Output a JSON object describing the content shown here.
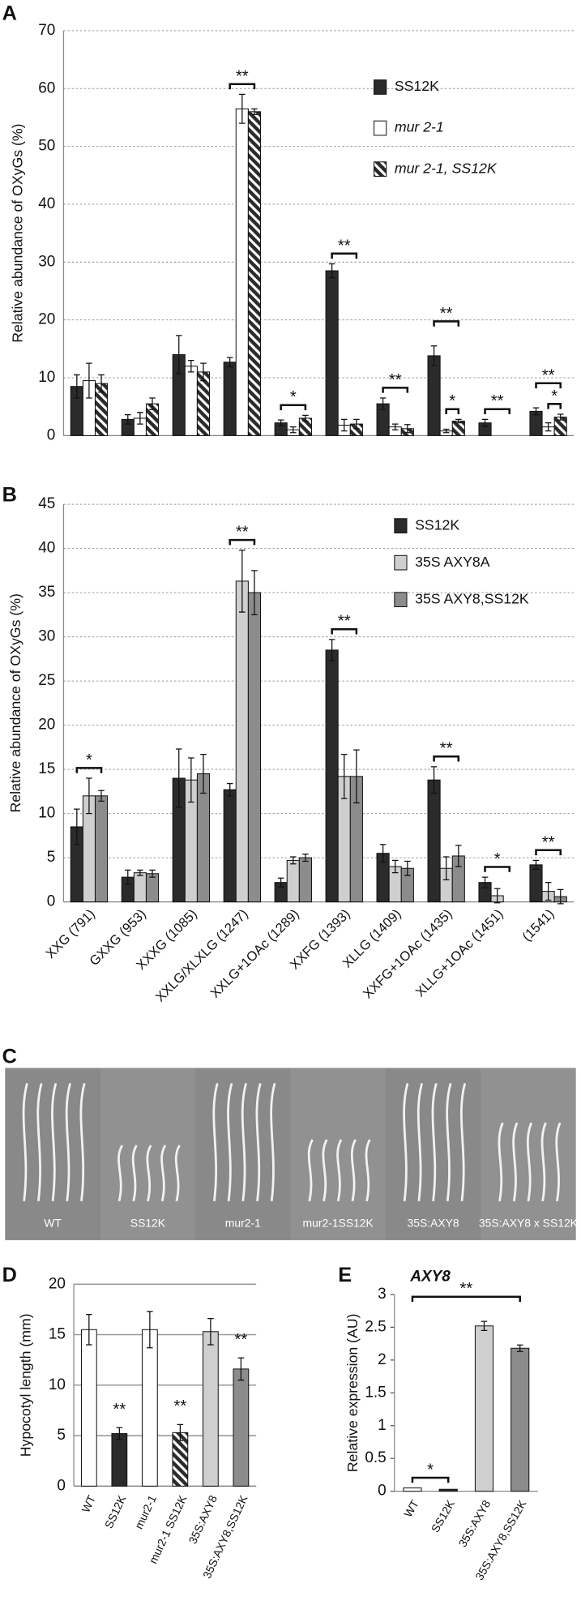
{
  "chart_data": [
    {
      "type": "bar",
      "panel": "A",
      "ylabel": "Relative abundance of OXyGs (%)",
      "categories": [
        null,
        null,
        null,
        null,
        null,
        null,
        null,
        null,
        null,
        null
      ],
      "series": [
        {
          "name": "SS12K",
          "color": "#2b2b2b",
          "values": [
            8.5,
            2.8,
            14,
            12.7,
            2.2,
            28.5,
            5.5,
            13.8,
            2.2,
            4.2
          ],
          "errors": [
            2,
            0.8,
            3.3,
            0.8,
            0.5,
            1.2,
            1,
            1.7,
            0.6,
            0.6
          ]
        },
        {
          "name": "mur 2-1",
          "color": "#ffffff",
          "values": [
            9.5,
            3,
            12,
            56.5,
            1,
            1.8,
            1.5,
            0.8,
            null,
            1.5
          ],
          "errors": [
            3,
            1,
            1,
            2.5,
            0.5,
            1,
            0.5,
            0.3,
            null,
            0.7
          ]
        },
        {
          "name": "mur 2-1, SS12K",
          "color": "#2b2b2b",
          "hatched": true,
          "values": [
            9,
            5.5,
            11,
            56,
            3,
            2,
            1.2,
            2.5,
            null,
            3.2
          ],
          "errors": [
            1.5,
            1,
            1.5,
            0.5,
            0.5,
            0.8,
            0.7,
            0.3,
            null,
            0.5
          ]
        }
      ],
      "annotations": [
        "**",
        "*",
        "**",
        "**",
        "**",
        "*",
        "**",
        "**",
        "*"
      ],
      "ylim": [
        0,
        70
      ],
      "yticks": [
        0,
        10,
        20,
        30,
        40,
        50,
        60,
        70
      ],
      "grid": true,
      "grid_style": "dotted"
    },
    {
      "type": "bar",
      "panel": "B",
      "ylabel": "Relative abundance of OXyGs (%)",
      "categories": [
        "XXG (791)",
        "GXXG (953)",
        "XXXG (1085)",
        "XXLG/XLXLG (1247)",
        "XXLG+1OAc (1289)",
        "XXFG (1393)",
        "XLLG (1409)",
        "XXFG+1OAc (1435)",
        "XLLG+1OAc (1451)",
        "(1541)"
      ],
      "series": [
        {
          "name": "SS12K",
          "color": "#2b2b2b",
          "values": [
            8.5,
            2.8,
            14,
            12.7,
            2.2,
            28.5,
            5.5,
            13.8,
            2.2,
            4.2
          ],
          "errors": [
            2,
            0.8,
            3.3,
            0.7,
            0.5,
            1.2,
            1,
            1.5,
            0.6,
            0.5
          ]
        },
        {
          "name": "35S AXY8A",
          "color": "#cfcfcf",
          "values": [
            12,
            3.3,
            13.8,
            36.3,
            4.7,
            14.2,
            4,
            3.8,
            0.7,
            1.2
          ],
          "errors": [
            2,
            0.3,
            2.5,
            3.5,
            0.4,
            2.5,
            0.7,
            1.3,
            0.8,
            1
          ]
        },
        {
          "name": "35S AXY8,SS12K",
          "color": "#8c8c8c",
          "values": [
            12,
            3.2,
            14.5,
            35,
            5,
            14.2,
            3.8,
            5.2,
            null,
            0.6
          ],
          "errors": [
            0.6,
            0.4,
            2.2,
            2.5,
            0.4,
            3,
            0.8,
            1.2,
            null,
            0.8
          ]
        }
      ],
      "annotations": [
        "*",
        "**",
        "**",
        "**",
        "*",
        "**"
      ],
      "ylim": [
        0,
        45
      ],
      "yticks": [
        0,
        5,
        10,
        15,
        20,
        25,
        30,
        35,
        40,
        45
      ],
      "grid": true,
      "grid_style": "dotted"
    },
    {
      "type": "image",
      "panel": "C",
      "labels": [
        "WT",
        "SS12K",
        "mur2-1",
        "mur2-1SS12K",
        "35S:AXY8",
        "35S:AXY8 x SS12K"
      ]
    },
    {
      "type": "bar",
      "panel": "D",
      "ylabel": "Hypocotyl length (mm)",
      "categories": [
        "WT",
        "SS12K",
        "mur2-1",
        "mur2-1 SS12K",
        "35S:AXY8",
        "35S:AXY8,SS12K"
      ],
      "values": [
        15.5,
        5.2,
        15.5,
        5.3,
        15.3,
        11.6
      ],
      "errors": [
        1.5,
        0.6,
        1.8,
        0.8,
        1.3,
        1.1
      ],
      "colors": [
        "#ffffff",
        "#2b2b2b",
        "#ffffff",
        "#2b2b2b",
        "#cfcfcf",
        "#8c8c8c"
      ],
      "hatched": [
        false,
        false,
        false,
        true,
        false,
        false
      ],
      "annotations": [
        "**",
        "**",
        "**"
      ],
      "ylim": [
        0,
        20
      ],
      "yticks": [
        0,
        5,
        10,
        15,
        20
      ],
      "grid": true,
      "grid_style": "solid"
    },
    {
      "type": "bar",
      "panel": "E",
      "title": "AXY8",
      "ylabel": "Relative expression (AU)",
      "categories": [
        "WT",
        "SS12K",
        "35S:AXY8",
        "35S:AXY8,SS12K"
      ],
      "values": [
        0.05,
        0.03,
        2.52,
        2.18
      ],
      "errors": [
        null,
        null,
        0.07,
        0.05
      ],
      "colors": [
        "#ffffff",
        "#2b2b2b",
        "#cfcfcf",
        "#8c8c8c"
      ],
      "annotations": [
        "*",
        "**"
      ],
      "ylim": [
        0,
        3
      ],
      "yticks": [
        0,
        0.5,
        1,
        1.5,
        2,
        2.5,
        3
      ],
      "grid": false
    }
  ]
}
